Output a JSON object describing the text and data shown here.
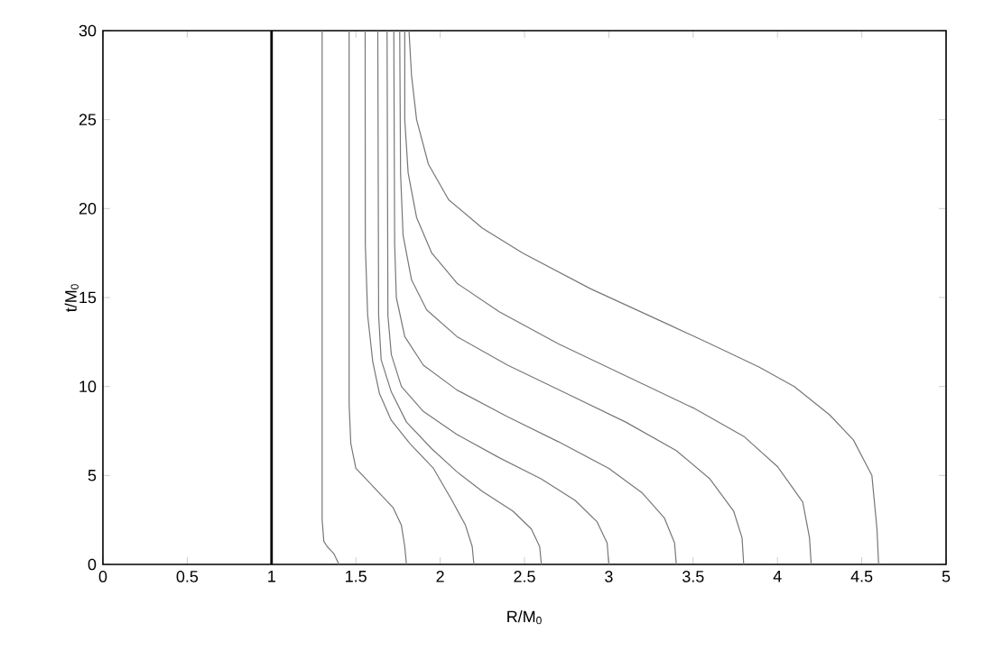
{
  "chart_data": {
    "type": "line",
    "xlabel": "R/M$_{0}$",
    "ylabel": "t/M$_{0}$",
    "xlim": [
      0,
      5
    ],
    "ylim": [
      0,
      30
    ],
    "xticks": [
      0,
      0.5,
      1,
      1.5,
      2,
      2.5,
      3,
      3.5,
      4,
      4.5,
      5
    ],
    "yticks": [
      0,
      5,
      10,
      15,
      20,
      25,
      30
    ],
    "marker": "none",
    "line_style": "solid",
    "ref_lines": [
      {
        "axis": "x",
        "value": 1,
        "color": "#000000"
      }
    ],
    "series": [
      {
        "color": "#777777",
        "x": [
          1.4,
          1.37,
          1.33,
          1.31,
          1.3,
          1.3
        ],
        "values": [
          0,
          0.6,
          1,
          1.3,
          2.5,
          30
        ]
      },
      {
        "color": "#777777",
        "x": [
          1.8,
          1.79,
          1.77,
          1.72,
          1.6,
          1.5,
          1.47,
          1.46,
          1.46
        ],
        "values": [
          0,
          1,
          2.2,
          3.2,
          4.4,
          5.4,
          6.8,
          9,
          30
        ]
      },
      {
        "color": "#777777",
        "x": [
          2.2,
          2.19,
          2.15,
          2.07,
          1.96,
          1.82,
          1.71,
          1.64,
          1.6,
          1.57,
          1.556,
          1.555
        ],
        "values": [
          0,
          1,
          2.2,
          3.6,
          5.4,
          6.8,
          8.1,
          9.6,
          11.4,
          14,
          18,
          30
        ]
      },
      {
        "color": "#777777",
        "x": [
          2.6,
          2.59,
          2.54,
          2.43,
          2.25,
          2.1,
          1.95,
          1.8,
          1.71,
          1.65,
          1.635,
          1.63
        ],
        "values": [
          0,
          1,
          2,
          3,
          4.1,
          5.2,
          6.5,
          8,
          9.7,
          11.5,
          14,
          30
        ]
      },
      {
        "color": "#777777",
        "x": [
          3.0,
          2.99,
          2.93,
          2.8,
          2.6,
          2.35,
          2.1,
          1.9,
          1.77,
          1.71,
          1.69,
          1.685
        ],
        "values": [
          0,
          1.2,
          2.4,
          3.6,
          4.8,
          6,
          7.3,
          8.6,
          10,
          11.8,
          14,
          30
        ]
      },
      {
        "color": "#777777",
        "x": [
          3.4,
          3.39,
          3.33,
          3.2,
          3.0,
          2.7,
          2.4,
          2.1,
          1.9,
          1.79,
          1.74,
          1.73,
          1.725
        ],
        "values": [
          0,
          1.2,
          2.6,
          4,
          5.4,
          6.9,
          8.3,
          9.8,
          11.2,
          12.8,
          15,
          18,
          30
        ]
      },
      {
        "color": "#777777",
        "x": [
          3.8,
          3.79,
          3.74,
          3.6,
          3.4,
          3.1,
          2.75,
          2.4,
          2.1,
          1.92,
          1.83,
          1.78,
          1.765,
          1.76
        ],
        "values": [
          0,
          1.5,
          3,
          4.8,
          6.4,
          8,
          9.6,
          11.2,
          12.8,
          14.3,
          16,
          18.5,
          22,
          30
        ]
      },
      {
        "color": "#777777",
        "x": [
          4.2,
          4.19,
          4.15,
          4.0,
          3.8,
          3.5,
          3.1,
          2.7,
          2.35,
          2.1,
          1.95,
          1.86,
          1.81,
          1.79,
          1.79
        ],
        "values": [
          0,
          1.5,
          3.5,
          5.5,
          7.2,
          8.8,
          10.6,
          12.4,
          14.2,
          15.8,
          17.5,
          19.5,
          22,
          25,
          30
        ]
      },
      {
        "color": "#777777",
        "x": [
          4.6,
          4.59,
          4.56,
          4.45,
          4.31,
          4.1,
          3.89,
          3.6,
          3.35,
          2.89,
          2.49,
          2.25,
          2.05,
          1.93,
          1.86,
          1.83,
          1.815
        ],
        "values": [
          0,
          2,
          5,
          7,
          8.4,
          10,
          11.1,
          12.4,
          13.5,
          15.5,
          17.5,
          18.9,
          20.5,
          22.5,
          25,
          27.5,
          30
        ]
      }
    ]
  }
}
